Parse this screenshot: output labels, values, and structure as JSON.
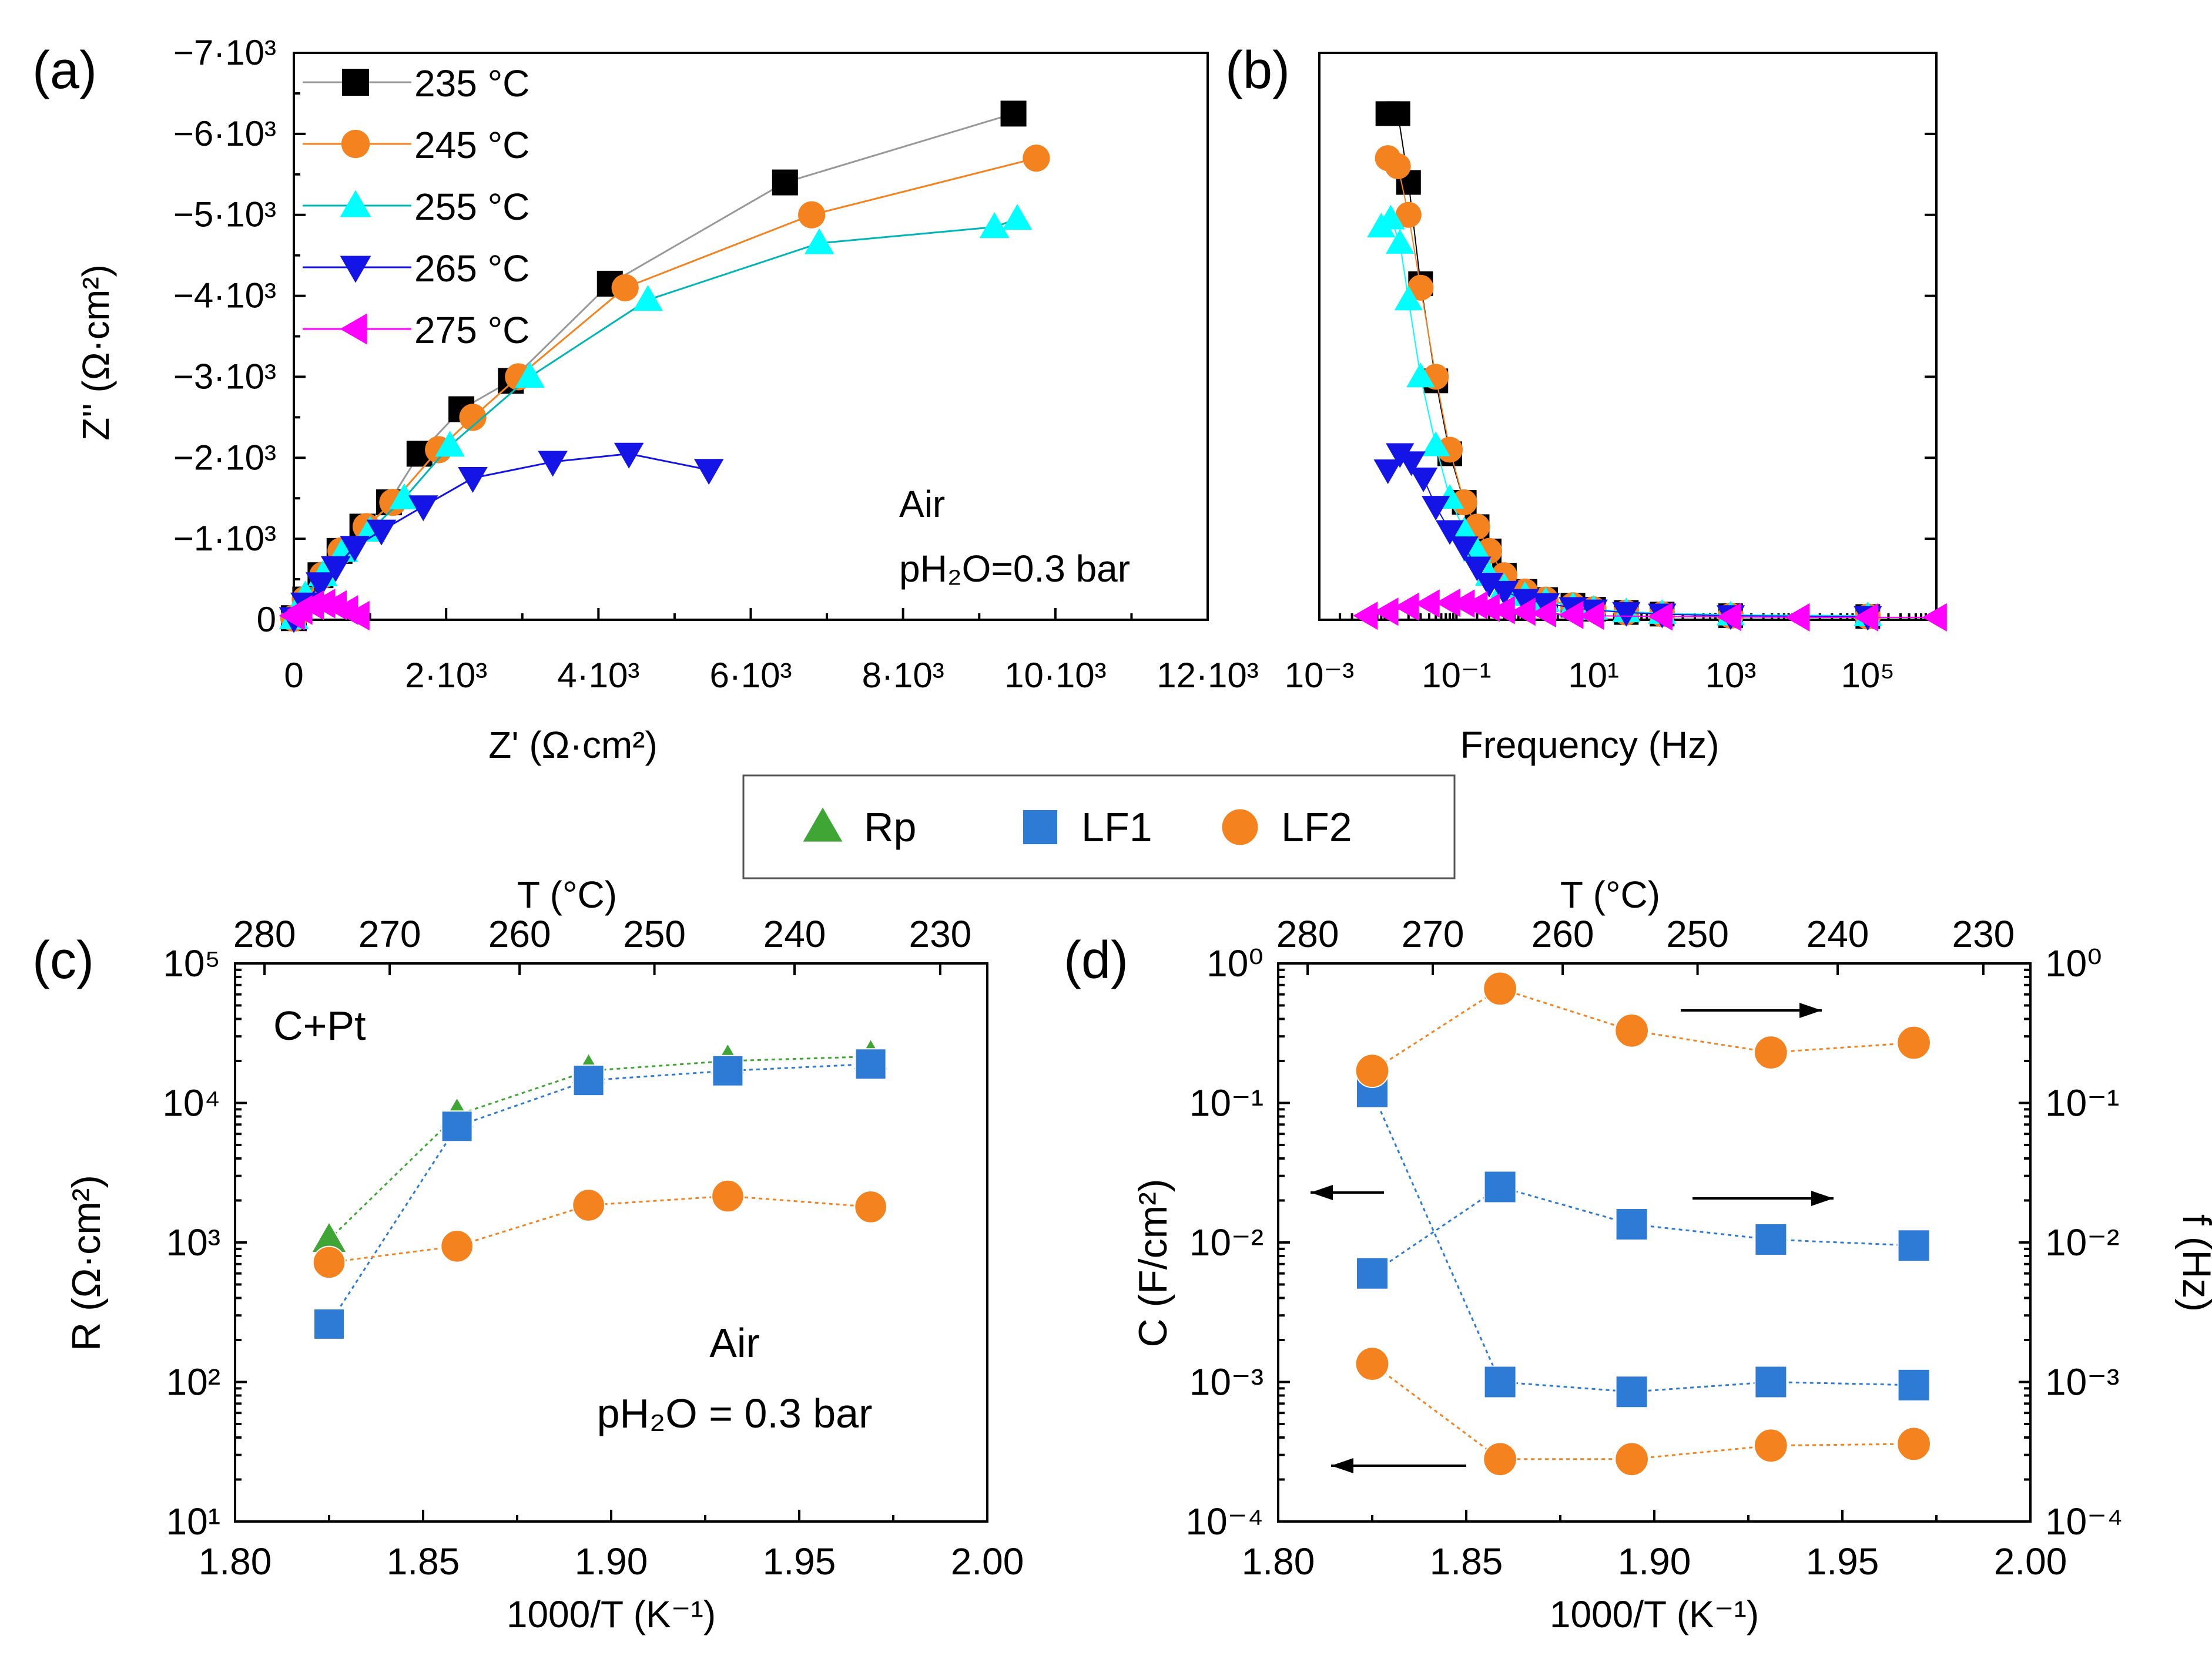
{
  "chart_data": [
    {
      "panel": "(a)",
      "type": "line",
      "xlabel": "Z' (Ω·cm²)",
      "ylabel": "Z'' (Ω·cm²)",
      "xlim": [
        0,
        12000
      ],
      "ylim": [
        0,
        -7000
      ],
      "xticks": [
        "0",
        "2·10³",
        "4·10³",
        "6·10³",
        "8·10³",
        "10·10³",
        "12·10³"
      ],
      "yticks": [
        "0",
        "−1·10³",
        "−2·10³",
        "−3·10³",
        "−4·10³",
        "−5·10³",
        "−6·10³",
        "−7·10³"
      ],
      "annotation": [
        "Air",
        "pH₂O=0.3 bar"
      ],
      "legend_position": "top-left",
      "series": [
        {
          "name": "235 °C",
          "marker": "square",
          "color": "#000000",
          "line_color": "#999999",
          "x": [
            0,
            150,
            350,
            600,
            900,
            1250,
            1650,
            2200,
            2850,
            4150,
            6450,
            9450
          ],
          "y": [
            -20,
            -250,
            -550,
            -850,
            -1150,
            -1450,
            -2050,
            -2600,
            -2950,
            -4150,
            -5400,
            -6250
          ]
        },
        {
          "name": "245 °C",
          "marker": "circle",
          "color": "#F4821F",
          "line_color": "#F4821F",
          "x": [
            0,
            150,
            380,
            620,
            950,
            1300,
            1900,
            2350,
            2950,
            4350,
            6800,
            9750
          ],
          "y": [
            -20,
            -250,
            -550,
            -850,
            -1150,
            -1450,
            -2100,
            -2500,
            -3000,
            -4100,
            -5000,
            -5700
          ]
        },
        {
          "name": "255 °C",
          "marker": "triangle-up",
          "color": "#00FFFF",
          "line_color": "#00B5B5",
          "x": [
            0,
            150,
            380,
            650,
            1000,
            1450,
            2050,
            3100,
            4650,
            6900,
            9200,
            9500
          ],
          "y": [
            -20,
            -300,
            -550,
            -850,
            -1100,
            -1500,
            -2150,
            -3000,
            -3950,
            -4650,
            -4850,
            -4950
          ]
        },
        {
          "name": "265 °C",
          "marker": "triangle-down",
          "color": "#1414E6",
          "line_color": "#1414E6",
          "x": [
            0,
            150,
            350,
            550,
            800,
            1150,
            1700,
            2350,
            3400,
            4400,
            5450
          ],
          "y": [
            -20,
            -200,
            -450,
            -650,
            -900,
            -1100,
            -1400,
            -1750,
            -1950,
            -2050,
            -1850
          ]
        },
        {
          "name": "275 °C",
          "marker": "triangle-left",
          "color": "#FF00FF",
          "line_color": "#FF00FF",
          "x": [
            0,
            100,
            250,
            400,
            550,
            700,
            850
          ],
          "y": [
            -50,
            -120,
            -180,
            -200,
            -180,
            -120,
            -50
          ]
        }
      ]
    },
    {
      "panel": "(b)",
      "type": "scatter",
      "xlabel": "Frequency (Hz)",
      "xscale": "log",
      "xlim": [
        0.001,
        1000000
      ],
      "ylim": [
        0,
        -7000
      ],
      "xticks": [
        "10⁻³",
        "10⁻¹",
        "10¹",
        "10³",
        "10⁵"
      ],
      "series": [
        {
          "name": "235 °C",
          "marker": "square",
          "color": "#000000",
          "f": [
            0.01,
            0.014,
            0.02,
            0.03,
            0.05,
            0.08,
            0.13,
            0.2,
            0.3,
            0.5,
            1,
            2,
            5,
            10,
            30,
            100,
            1000,
            100000
          ],
          "z": [
            -6250,
            -6250,
            -5400,
            -4150,
            -2950,
            -2050,
            -1450,
            -1150,
            -850,
            -550,
            -350,
            -250,
            -180,
            -130,
            -90,
            -70,
            -50,
            -40
          ]
        },
        {
          "name": "245 °C",
          "marker": "circle",
          "color": "#F4821F",
          "f": [
            0.01,
            0.014,
            0.02,
            0.03,
            0.05,
            0.08,
            0.13,
            0.2,
            0.3,
            0.5,
            1,
            2,
            5,
            10,
            30,
            100,
            1000,
            100000
          ],
          "z": [
            -5700,
            -5600,
            -5000,
            -4100,
            -3000,
            -2100,
            -1450,
            -1150,
            -850,
            -550,
            -350,
            -250,
            -180,
            -130,
            -90,
            -70,
            -50,
            -40
          ]
        },
        {
          "name": "255 °C",
          "marker": "triangle-up",
          "color": "#00FFFF",
          "f": [
            0.008,
            0.011,
            0.015,
            0.02,
            0.03,
            0.05,
            0.08,
            0.13,
            0.2,
            0.3,
            0.5,
            1,
            2,
            5,
            10,
            30,
            100,
            1000,
            100000
          ],
          "z": [
            -4850,
            -4950,
            -4650,
            -3950,
            -3000,
            -2150,
            -1500,
            -1100,
            -850,
            -550,
            -400,
            -300,
            -230,
            -170,
            -130,
            -100,
            -80,
            -60,
            -50
          ]
        },
        {
          "name": "265 °C",
          "marker": "triangle-down",
          "color": "#1414E6",
          "f": [
            0.01,
            0.015,
            0.022,
            0.033,
            0.05,
            0.08,
            0.13,
            0.2,
            0.3,
            0.5,
            1,
            2,
            5,
            10,
            30,
            100,
            1000,
            100000
          ],
          "z": [
            -1850,
            -2050,
            -1950,
            -1750,
            -1400,
            -1100,
            -900,
            -650,
            -450,
            -350,
            -250,
            -200,
            -150,
            -120,
            -90,
            -70,
            -50,
            -40
          ]
        },
        {
          "name": "275 °C",
          "marker": "triangle-left",
          "color": "#FF00FF",
          "f": [
            0.005,
            0.01,
            0.02,
            0.04,
            0.08,
            0.13,
            0.2,
            0.3,
            0.5,
            1,
            2,
            5,
            10,
            100,
            1000,
            10000,
            100000,
            1000000
          ],
          "z": [
            -50,
            -100,
            -160,
            -200,
            -210,
            -200,
            -180,
            -150,
            -120,
            -100,
            -80,
            -60,
            -50,
            -40,
            -35,
            -30,
            -30,
            -30
          ]
        }
      ]
    },
    {
      "panel": "(c)",
      "type": "scatter",
      "xlabel": "1000/T (K⁻¹)",
      "ylabel": "R (Ω·cm²)",
      "toplabel": "T (°C)",
      "yscale": "log",
      "xlim": [
        1.8,
        2.0
      ],
      "ylim": [
        10,
        100000
      ],
      "xticks": [
        "1.80",
        "1.85",
        "1.90",
        "1.95",
        "2.00"
      ],
      "yticks": [
        "10¹",
        "10²",
        "10³",
        "10⁴",
        "10⁵"
      ],
      "top_ticks": [
        "280",
        "270",
        "260",
        "250",
        "240",
        "230"
      ],
      "annotation": [
        "C+Pt",
        "Air",
        "pH₂O = 0.3 bar"
      ],
      "x": [
        1.825,
        1.859,
        1.894,
        1.931,
        1.969
      ],
      "series": [
        {
          "name": "Rp",
          "marker": "triangle-up",
          "color": "#3FA535",
          "values": [
            1050,
            8200,
            17000,
            20000,
            21500
          ]
        },
        {
          "name": "LF1",
          "marker": "square",
          "color": "#2E7BD6",
          "values": [
            260,
            6800,
            14500,
            17000,
            19000
          ]
        },
        {
          "name": "LF2",
          "marker": "circle",
          "color": "#F4821F",
          "values": [
            720,
            940,
            1850,
            2150,
            1800
          ]
        }
      ]
    },
    {
      "panel": "(d)",
      "type": "scatter",
      "xlabel": "1000/T (K⁻¹)",
      "ylabel": "C (F/cm²)",
      "ylabel_right": "f (Hz)",
      "toplabel": "T (°C)",
      "yscale": "log",
      "xlim": [
        1.8,
        2.0
      ],
      "ylim": [
        0.0001,
        1
      ],
      "xticks": [
        "1.80",
        "1.85",
        "1.90",
        "1.95",
        "2.00"
      ],
      "yticks": [
        "10⁻⁴",
        "10⁻³",
        "10⁻²",
        "10⁻¹",
        "10⁰"
      ],
      "right_ticks": [
        "10⁻⁴",
        "10⁻³",
        "10⁻²",
        "10⁻¹",
        "10⁰"
      ],
      "top_ticks": [
        "280",
        "270",
        "260",
        "250",
        "240",
        "230"
      ],
      "x": [
        1.825,
        1.859,
        1.894,
        1.931,
        1.969
      ],
      "series": [
        {
          "name": "LF1 C",
          "marker": "square",
          "color": "#2E7BD6",
          "values": [
            0.12,
            0.001,
            0.00085,
            0.001,
            0.00095
          ]
        },
        {
          "name": "LF1 f",
          "marker": "square",
          "color": "#2E7BD6",
          "values": [
            0.006,
            0.025,
            0.0135,
            0.0105,
            0.0095
          ]
        },
        {
          "name": "LF2 C",
          "marker": "circle",
          "color": "#F4821F",
          "values": [
            0.00135,
            0.00028,
            0.00028,
            0.00035,
            0.00036
          ]
        },
        {
          "name": "LF2 f",
          "marker": "circle",
          "color": "#F4821F",
          "values": [
            0.17,
            0.66,
            0.33,
            0.23,
            0.27
          ]
        }
      ]
    }
  ],
  "panel_labels": [
    "(a)",
    "(b)",
    "(c)",
    "(d)"
  ],
  "shared_legend": [
    {
      "name": "Rp",
      "marker": "triangle-up",
      "color": "#3FA535"
    },
    {
      "name": "LF1",
      "marker": "square",
      "color": "#2E7BD6"
    },
    {
      "name": "LF2",
      "marker": "circle",
      "color": "#F4821F"
    }
  ]
}
